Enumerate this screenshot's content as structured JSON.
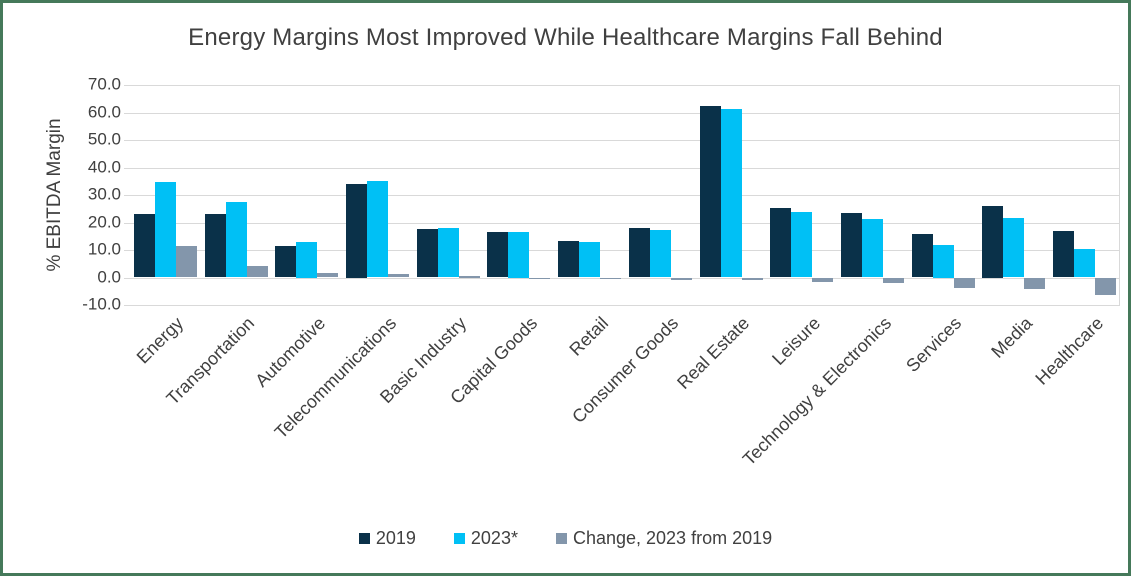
{
  "window": {
    "border_color": "#45795a",
    "background_color": "#ffffff",
    "text_color": "#404040"
  },
  "chart_data": {
    "type": "bar",
    "title": "Energy Margins Most Improved While Healthcare Margins Fall Behind",
    "xlabel": "",
    "ylabel": "% EBITDA Margin",
    "ylim": [
      -10,
      70
    ],
    "ytick_step": 10,
    "ytick_decimals": 1,
    "grid": true,
    "gridline_color": "#d9d9d9",
    "legend_position": "bottom",
    "categories": [
      "Energy",
      "Transportation",
      "Automotive",
      "Telecommunications",
      "Basic Industry",
      "Capital Goods",
      "Retail",
      "Consumer Goods",
      "Real Estate",
      "Leisure",
      "Technology & Electronics",
      "Services",
      "Media",
      "Healthcare"
    ],
    "series": [
      {
        "name": "2019",
        "color": "#0a3149",
        "values": [
          23.2,
          23.1,
          11.3,
          34.0,
          17.6,
          16.7,
          13.2,
          18.1,
          62.3,
          25.4,
          23.4,
          15.8,
          26.0,
          16.9
        ]
      },
      {
        "name": "2023*",
        "color": "#00c0f5",
        "values": [
          34.6,
          27.4,
          13.0,
          35.2,
          18.1,
          16.5,
          12.8,
          17.3,
          61.3,
          23.8,
          21.4,
          12.0,
          21.8,
          10.4
        ]
      },
      {
        "name": "Change, 2023 from 2019",
        "color": "#8396ab",
        "values": [
          11.4,
          4.3,
          1.7,
          1.2,
          0.5,
          -0.2,
          -0.4,
          -0.8,
          -1.0,
          -1.6,
          -2.0,
          -3.8,
          -4.2,
          -6.5
        ]
      }
    ]
  }
}
